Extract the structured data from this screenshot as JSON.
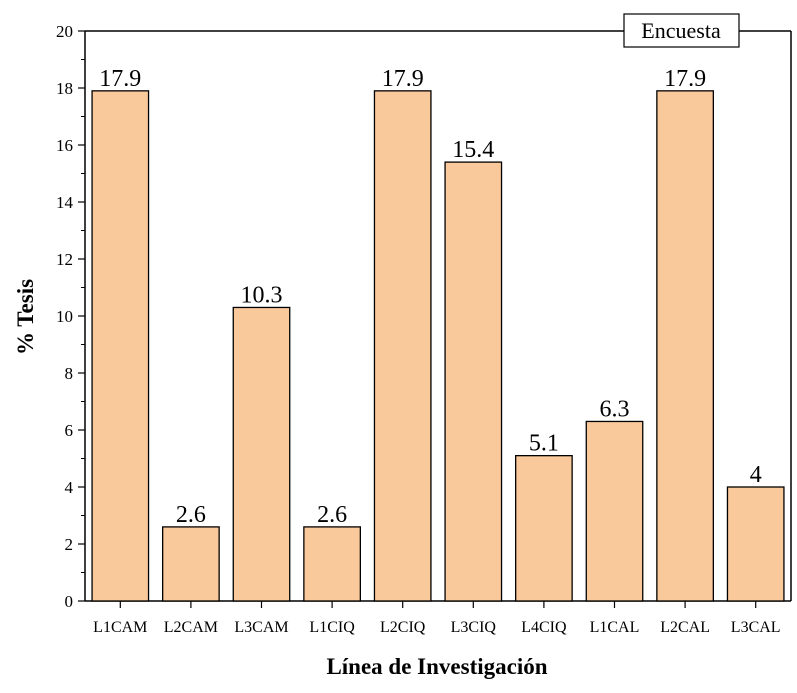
{
  "chart_data": {
    "type": "bar",
    "categories": [
      "L1CAM",
      "L2CAM",
      "L3CAM",
      "L1CIQ",
      "L2CIQ",
      "L3CIQ",
      "L4CIQ",
      "L1CAL",
      "L2CAL",
      "L3CAL"
    ],
    "values": [
      17.9,
      2.6,
      10.3,
      2.6,
      17.9,
      15.4,
      5.1,
      6.3,
      17.9,
      4
    ],
    "value_labels": [
      "17.9",
      "2.6",
      "10.3",
      "2.6",
      "17.9",
      "15.4",
      "5.1",
      "6.3",
      "17.9",
      "4"
    ],
    "xlabel": "Línea de Investigación",
    "ylabel": "% Tesis",
    "ylim": [
      0,
      20
    ],
    "yticks": [
      0,
      2,
      4,
      6,
      8,
      10,
      12,
      14,
      16,
      18,
      20
    ],
    "legend": "Encuesta",
    "legend_position": "top-right",
    "grid": false,
    "colors": {
      "bar_fill": "#F9C89B",
      "bar_stroke": "#000000",
      "axis": "#000000"
    }
  }
}
